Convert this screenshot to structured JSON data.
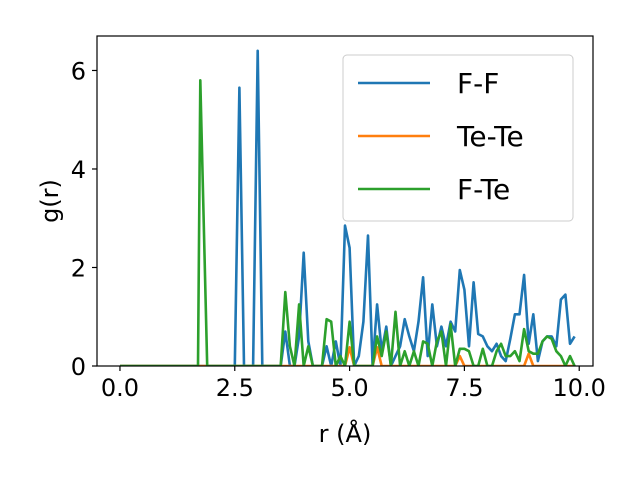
{
  "chart_data": {
    "type": "line",
    "xlabel": "r (Å)",
    "ylabel": "g(r)",
    "xlim": [
      -0.5,
      10.3
    ],
    "ylim": [
      0,
      6.7
    ],
    "xticks": [
      "0.0",
      "2.5",
      "5.0",
      "7.5",
      "10.0"
    ],
    "yticks": [
      "0",
      "2",
      "4",
      "6"
    ],
    "grid": false,
    "legend_position": "top-right",
    "series": [
      {
        "name": "F-F",
        "color": "#1f77b4",
        "x": [
          0,
          1,
          2,
          2.5,
          2.6,
          2.7,
          2.8,
          2.9,
          3.0,
          3.1,
          3.2,
          3.3,
          3.4,
          3.5,
          3.6,
          3.7,
          3.8,
          3.9,
          4.0,
          4.1,
          4.2,
          4.3,
          4.4,
          4.5,
          4.6,
          4.7,
          4.8,
          4.9,
          5.0,
          5.1,
          5.2,
          5.3,
          5.4,
          5.5,
          5.6,
          5.7,
          5.8,
          5.9,
          6.0,
          6.1,
          6.2,
          6.3,
          6.4,
          6.5,
          6.6,
          6.7,
          6.8,
          6.9,
          7.0,
          7.1,
          7.2,
          7.3,
          7.4,
          7.5,
          7.6,
          7.7,
          7.8,
          7.9,
          8.0,
          8.1,
          8.2,
          8.3,
          8.4,
          8.5,
          8.6,
          8.7,
          8.8,
          8.9,
          9.0,
          9.1,
          9.2,
          9.3,
          9.4,
          9.5,
          9.6,
          9.7,
          9.8,
          9.9
        ],
        "y": [
          0,
          0,
          0,
          0,
          5.65,
          0,
          0,
          0,
          6.4,
          0,
          0,
          0,
          0,
          0,
          0.7,
          0,
          0,
          0.6,
          2.3,
          0.5,
          0,
          0,
          0,
          0.4,
          0,
          0.5,
          0,
          2.85,
          2.4,
          0,
          0.2,
          0.9,
          2.65,
          0,
          1.25,
          0.3,
          0.8,
          0,
          0.2,
          0.4,
          0.95,
          0.6,
          0.3,
          0.9,
          1.8,
          0.2,
          1.25,
          0.4,
          0.8,
          0.4,
          0.9,
          0.7,
          1.95,
          1.55,
          0.4,
          1.7,
          0.65,
          0.6,
          0.4,
          0.3,
          0.45,
          0.2,
          0.1,
          0.55,
          1.05,
          1.05,
          1.85,
          0.45,
          1.05,
          0.1,
          0.5,
          0.6,
          0.6,
          0.4,
          1.35,
          1.45,
          0.45,
          0.6
        ]
      },
      {
        "name": "Te-Te",
        "color": "#ff7f0e",
        "x": [
          0,
          4.9,
          5.0,
          5.1,
          5.5,
          5.6,
          5.7,
          7.3,
          7.4,
          7.5,
          8.8,
          8.9,
          9.0,
          9.9
        ],
        "y": [
          0,
          0,
          0.38,
          0,
          0,
          0.38,
          0,
          0,
          0.2,
          0,
          0,
          0.25,
          0,
          0
        ]
      },
      {
        "name": "F-Te",
        "color": "#2ca02c",
        "x": [
          0,
          1.7,
          1.75,
          1.9,
          2.0,
          3.5,
          3.6,
          3.7,
          3.8,
          3.9,
          4.0,
          4.1,
          4.2,
          4.3,
          4.4,
          4.5,
          4.6,
          4.7,
          4.8,
          4.9,
          5.0,
          5.1,
          5.2,
          5.3,
          5.4,
          5.5,
          5.6,
          5.7,
          5.8,
          5.9,
          6.0,
          6.1,
          6.2,
          6.3,
          6.4,
          6.5,
          6.6,
          6.7,
          6.8,
          6.9,
          7.0,
          7.1,
          7.2,
          7.3,
          7.4,
          7.5,
          7.6,
          7.7,
          7.8,
          7.9,
          8.0,
          8.1,
          8.2,
          8.3,
          8.4,
          8.5,
          8.6,
          8.7,
          8.8,
          8.9,
          9.0,
          9.1,
          9.2,
          9.3,
          9.4,
          9.5,
          9.6,
          9.7,
          9.8,
          9.9
        ],
        "y": [
          0,
          0,
          5.8,
          0,
          0,
          0,
          1.5,
          0.4,
          0,
          1.25,
          0,
          0.4,
          0,
          0,
          0,
          0.95,
          0.9,
          0,
          0.2,
          0,
          0.9,
          0,
          0,
          0,
          0,
          0,
          0.6,
          0.2,
          0.7,
          0,
          1.1,
          0,
          0.3,
          0,
          0.3,
          0,
          0.5,
          0.45,
          0,
          0.5,
          0.7,
          0,
          0.85,
          0,
          0.35,
          0.35,
          0.3,
          0,
          0,
          0.35,
          0,
          0,
          0.3,
          0.45,
          0.2,
          0.2,
          0.3,
          0.1,
          0.75,
          0.3,
          0.25,
          0.25,
          0.5,
          0.6,
          0.55,
          0.3,
          0.2,
          0,
          0.2,
          0
        ]
      }
    ]
  }
}
